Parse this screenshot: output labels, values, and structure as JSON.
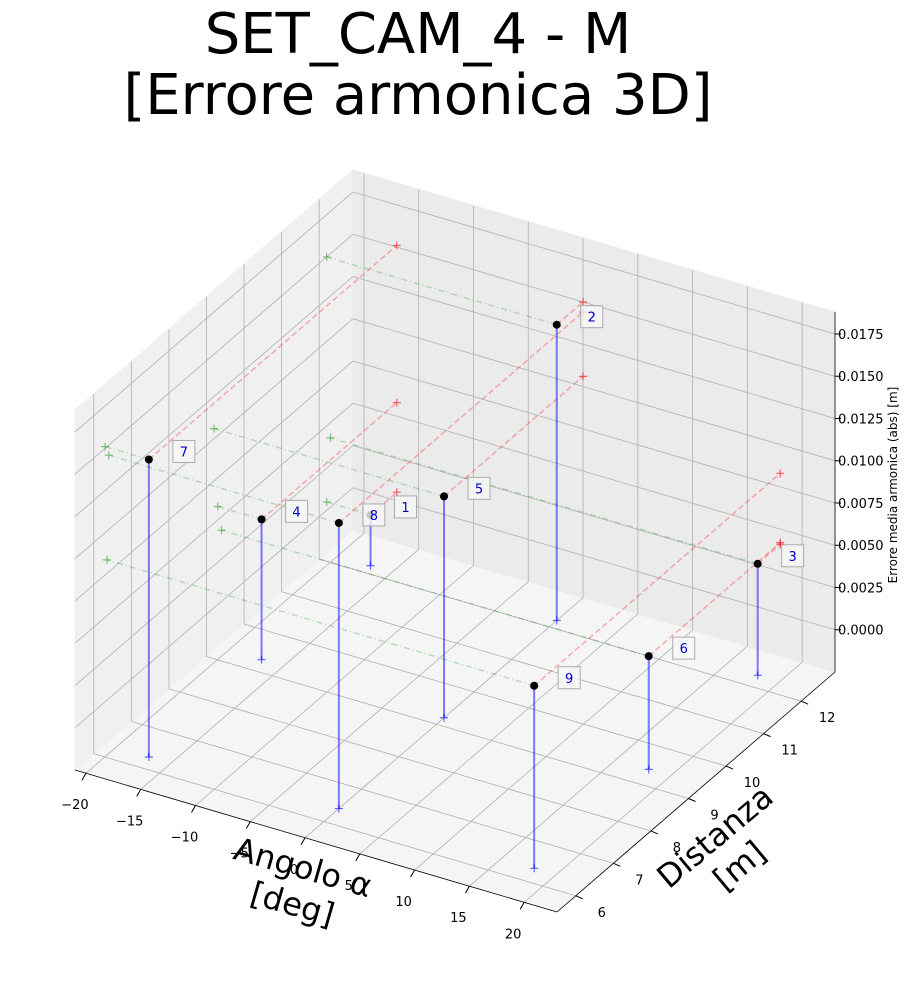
{
  "chart_data": {
    "type": "scatter3d",
    "title": "SET_CAM_4 - M\n[Errore armonica 3D]",
    "x_label": "Angolo α\n[deg]",
    "y_label": "Distanza\n[m]",
    "z_label": "Errore media armonica (abs) [m]",
    "labels": [
      "1",
      "2",
      "3",
      "4",
      "5",
      "6",
      "7",
      "8",
      "9"
    ],
    "x": [
      -17,
      0,
      18,
      -17,
      0,
      18,
      -17,
      0,
      18
    ],
    "y": [
      12.2,
      12.2,
      12.3,
      9.3,
      9.2,
      9.4,
      6.3,
      6.4,
      6.35
    ],
    "z": [
      0.0005,
      0.015,
      0.0041,
      0.0058,
      0.0106,
      0.0042,
      0.0151,
      0.0144,
      0.0083
    ],
    "xlim": [
      -21,
      23
    ],
    "ylim": [
      5.5,
      12.9
    ],
    "zlim": [
      -0.0025,
      0.0188
    ],
    "xticks": [
      {
        "value": -20,
        "label": "−20"
      },
      {
        "value": -15,
        "label": "−15"
      },
      {
        "value": -10,
        "label": "−10"
      },
      {
        "value": -5,
        "label": "−5"
      },
      0,
      5,
      10,
      15,
      20
    ],
    "yticks": [
      6,
      7,
      8,
      9,
      10,
      11,
      12
    ],
    "zticks": [
      {
        "value": 0,
        "label": "0.0000"
      },
      {
        "value": 0.0025,
        "label": "0.0025"
      },
      {
        "value": 0.005,
        "label": "0.0050"
      },
      {
        "value": 0.0075,
        "label": "0.0075"
      },
      {
        "value": 0.01,
        "label": "0.0100"
      },
      {
        "value": 0.0125,
        "label": "0.0125"
      },
      {
        "value": 0.015,
        "label": "0.0150"
      },
      {
        "value": 0.0175,
        "label": "0.0175"
      }
    ],
    "grid": true,
    "point_color": "#000000",
    "stem_color": "#0000ff",
    "x_projection_color": "#2ca02c",
    "y_projection_color": "#ff0000",
    "label_color": "#0000cc"
  }
}
